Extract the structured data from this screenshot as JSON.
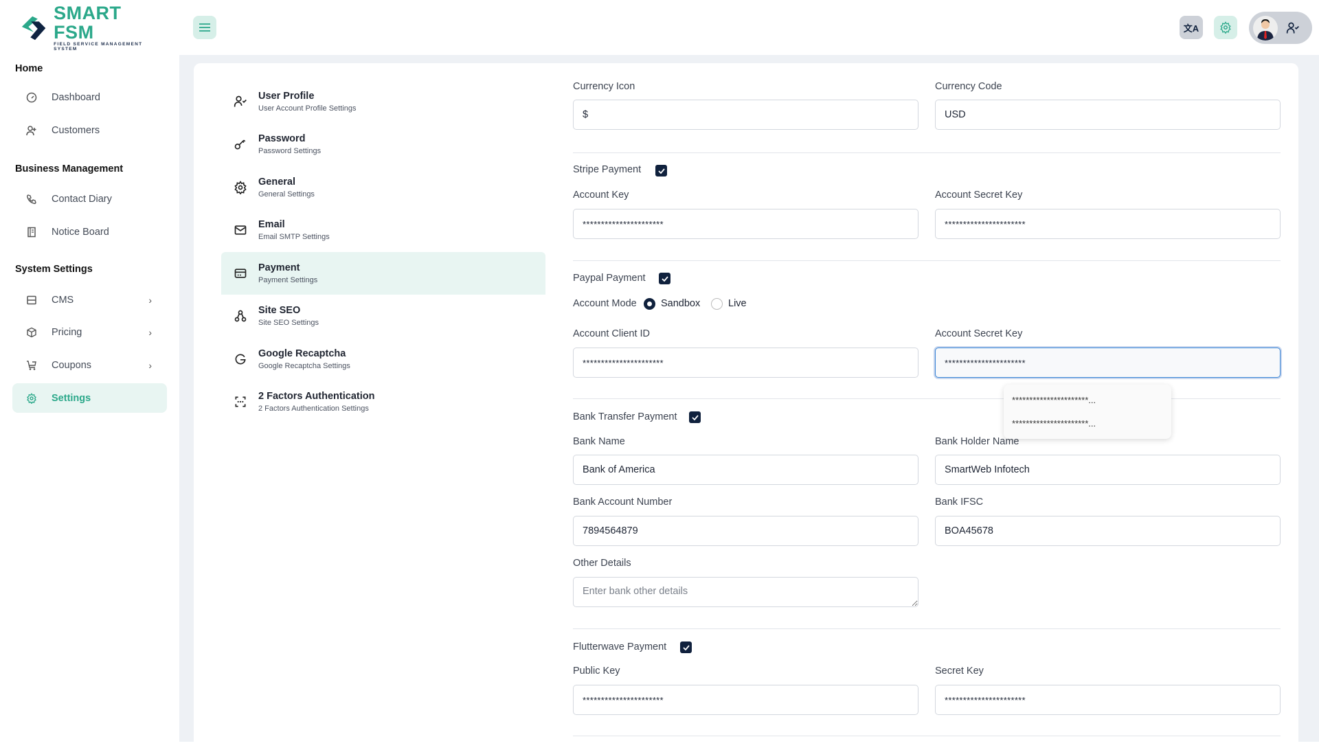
{
  "header": {
    "logo_main": "SMART FSM",
    "logo_sub": "FIELD SERVICE MANAGEMENT SYSTEM",
    "icons": [
      "menu-icon",
      "translate-icon",
      "gear-icon",
      "user-check-icon"
    ]
  },
  "colors": {
    "accent": "#2ba88a",
    "navy": "#10213d",
    "active_bg": "#e8f5f2"
  },
  "sidebar": {
    "sections": [
      {
        "title": "Home",
        "items": [
          {
            "label": "Dashboard",
            "icon": "gauge-icon"
          },
          {
            "label": "Customers",
            "icon": "user-plus-icon"
          }
        ]
      },
      {
        "title": "Business Management",
        "items": [
          {
            "label": "Contact Diary",
            "icon": "phone-icon"
          },
          {
            "label": "Notice Board",
            "icon": "notebook-icon"
          }
        ]
      },
      {
        "title": "System Settings",
        "items": [
          {
            "label": "CMS",
            "icon": "layout-icon"
          },
          {
            "label": "Pricing",
            "icon": "box-icon"
          },
          {
            "label": "Coupons",
            "icon": "cart-discount-icon"
          },
          {
            "label": "Settings",
            "icon": "gear-icon",
            "active": true
          }
        ]
      }
    ]
  },
  "settings_menu": [
    {
      "title": "User Profile",
      "subtitle": "User Account Profile Settings"
    },
    {
      "title": "Password",
      "subtitle": "Password Settings"
    },
    {
      "title": "General",
      "subtitle": "General Settings"
    },
    {
      "title": "Email",
      "subtitle": "Email SMTP Settings"
    },
    {
      "title": "Payment",
      "subtitle": "Payment Settings",
      "active": true
    },
    {
      "title": "Site SEO",
      "subtitle": "Site SEO Settings"
    },
    {
      "title": "Google Recaptcha",
      "subtitle": "Google Recaptcha Settings"
    },
    {
      "title": "2 Factors Authentication",
      "subtitle": "2 Factors Authentication Settings"
    }
  ],
  "form": {
    "currency_icon": {
      "label": "Currency Icon",
      "value": "$"
    },
    "currency_code": {
      "label": "Currency Code",
      "value": "USD"
    },
    "stripe": {
      "label": "Stripe Payment",
      "checked": true,
      "key_label": "Account Key",
      "key_value": "**********************",
      "secret_label": "Account Secret Key",
      "secret_value": "**********************"
    },
    "paypal": {
      "label": "Paypal Payment",
      "checked": true,
      "mode_label": "Account Mode",
      "mode_options": [
        "Sandbox",
        "Live"
      ],
      "mode_selected": "Sandbox",
      "client_label": "Account Client ID",
      "client_value": "**********************",
      "secret_label": "Account Secret Key",
      "secret_value": "**********************"
    },
    "autocomplete": [
      "**********************...",
      "**********************..."
    ],
    "bank": {
      "label": "Bank Transfer Payment",
      "checked": true,
      "name_label": "Bank Name",
      "name_value": "Bank of America",
      "holder_label": "Bank Holder Name",
      "holder_value": "SmartWeb Infotech",
      "account_label": "Bank Account Number",
      "account_value": "7894564879",
      "ifsc_label": "Bank IFSC",
      "ifsc_value": "BOA45678",
      "other_label": "Other Details",
      "other_placeholder": "Enter bank other details"
    },
    "flutterwave": {
      "label": "Flutterwave Payment",
      "checked": true,
      "public_label": "Public Key",
      "public_value": "**********************",
      "secret_label": "Secret Key",
      "secret_value": "**********************"
    }
  }
}
